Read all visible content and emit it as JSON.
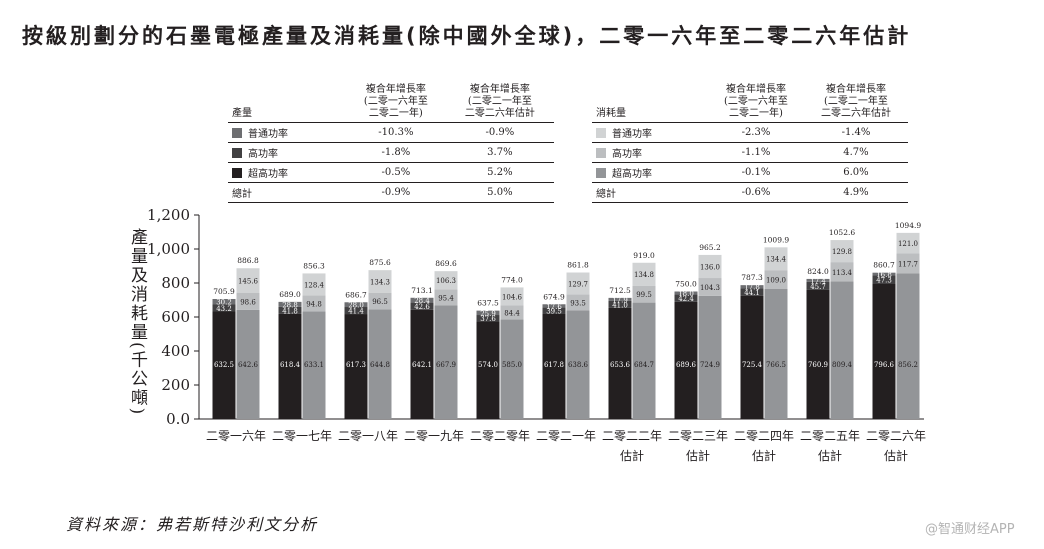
{
  "title": "按級別劃分的石墨電極產量及消耗量(除中國外全球)，二零一六年至二零二六年估計",
  "prod_table": {
    "label": "產量",
    "col1": [
      "複合年增長率",
      "(二零一六年至",
      "二零二一年)"
    ],
    "col2": [
      "複合年增長率",
      "(二零二一年至",
      "二零二六年估計"
    ],
    "rows": [
      {
        "name": "普通功率",
        "c1": "-10.3%",
        "c2": "-0.9%",
        "color": "#6d6e71"
      },
      {
        "name": "高功率",
        "c1": "-1.8%",
        "c2": "3.7%",
        "color": "#414042"
      },
      {
        "name": "超高功率",
        "c1": "-0.5%",
        "c2": "5.2%",
        "color": "#231f20"
      }
    ],
    "total": {
      "name": "總計",
      "c1": "-0.9%",
      "c2": "5.0%"
    }
  },
  "cons_table": {
    "label": "消耗量",
    "col1": [
      "複合年增長率",
      "(二零一六年至",
      "二零二一年)"
    ],
    "col2": [
      "複合年增長率",
      "(二零二一年至",
      "二零二六年估計"
    ],
    "rows": [
      {
        "name": "普通功率",
        "c1": "-2.3%",
        "c2": "-1.4%",
        "color": "#d1d3d4"
      },
      {
        "name": "高功率",
        "c1": "-1.1%",
        "c2": "4.7%",
        "color": "#bcbec0"
      },
      {
        "name": "超高功率",
        "c1": "-0.1%",
        "c2": "6.0%",
        "color": "#939598"
      }
    ],
    "total": {
      "name": "總計",
      "c1": "-0.6%",
      "c2": "4.9%"
    }
  },
  "y_axis_title": "產量及消耗量(千公噸)",
  "source": "資料來源：弗若斯特沙利文分析",
  "watermark": "@智通财经APP",
  "chart_data": {
    "type": "bar",
    "stacked": true,
    "ylim": [
      0,
      1200
    ],
    "yticks": [
      "0.0",
      "200",
      "400",
      "600",
      "800",
      "1,000",
      "1,200"
    ],
    "categories": [
      [
        "二零一六年"
      ],
      [
        "二零一七年"
      ],
      [
        "二零一八年"
      ],
      [
        "二零一九年"
      ],
      [
        "二零二零年"
      ],
      [
        "二零二一年"
      ],
      [
        "二零二二年",
        "估計"
      ],
      [
        "二零二三年",
        "估計"
      ],
      [
        "二零二四年",
        "估計"
      ],
      [
        "二零二五年",
        "估計"
      ],
      [
        "二零二六年",
        "估計"
      ]
    ],
    "production": {
      "uhp": [
        632.5,
        618.4,
        617.3,
        642.1,
        574.0,
        617.8,
        653.6,
        689.6,
        725.4,
        760.9,
        796.6
      ],
      "hp": [
        43.2,
        41.8,
        41.4,
        42.6,
        37.6,
        39.5,
        41.0,
        42.4,
        44.1,
        45.7,
        47.3
      ],
      "rp": [
        30.2,
        28.8,
        28.0,
        28.4,
        25.9,
        17.6,
        17.9,
        18.0,
        17.8,
        17.4,
        16.8
      ],
      "total": [
        705.9,
        689.0,
        686.7,
        713.1,
        637.5,
        674.9,
        712.5,
        750.0,
        787.3,
        824.0,
        860.7
      ]
    },
    "consumption": {
      "uhp": [
        642.6,
        633.1,
        644.8,
        667.9,
        585.0,
        638.6,
        684.7,
        724.9,
        766.5,
        809.4,
        856.2
      ],
      "hp": [
        98.6,
        94.8,
        96.5,
        95.4,
        84.4,
        93.5,
        99.5,
        104.3,
        109.0,
        113.4,
        117.7
      ],
      "rp": [
        145.6,
        128.4,
        134.3,
        106.3,
        104.6,
        129.7,
        134.8,
        136.0,
        134.4,
        129.8,
        121.0
      ],
      "total": [
        886.8,
        856.3,
        875.6,
        869.6,
        774.0,
        861.8,
        919.0,
        965.2,
        1009.9,
        1052.6,
        1094.9
      ]
    }
  }
}
